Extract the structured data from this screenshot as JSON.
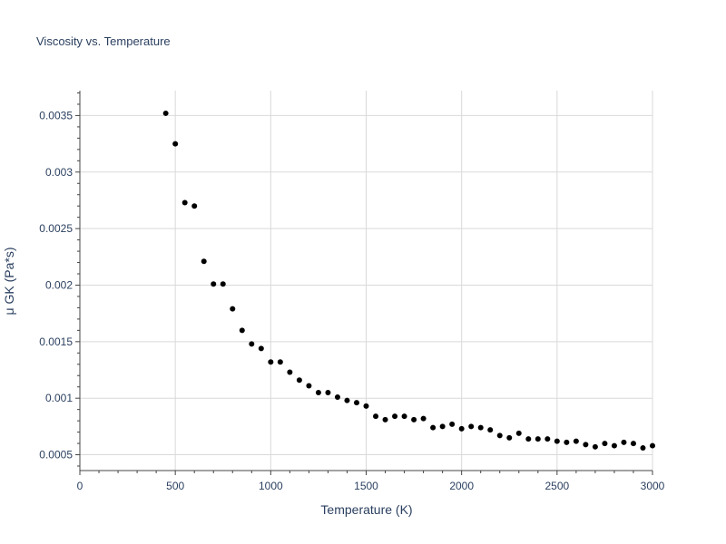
{
  "chart_data": {
    "type": "scatter",
    "title": "Viscosity vs. Temperature",
    "xlabel": "Temperature (K)",
    "ylabel": "μ GK (Pa*s)",
    "xlim": [
      0,
      3000
    ],
    "ylim": [
      0.00036,
      0.00372
    ],
    "grid": true,
    "legend": "none",
    "marker_color": "#000000",
    "x_ticks": [
      0,
      500,
      1000,
      1500,
      2000,
      2500,
      3000
    ],
    "x_tick_labels": [
      "0",
      "500",
      "1000",
      "1500",
      "2000",
      "2500",
      "3000"
    ],
    "y_ticks": [
      0.0005,
      0.001,
      0.0015,
      0.002,
      0.0025,
      0.003,
      0.0035
    ],
    "y_tick_labels": [
      "0.0005",
      "0.001",
      "0.0015",
      "0.002",
      "0.0025",
      "0.003",
      "0.0035"
    ],
    "series": [
      {
        "x": [
          450,
          500,
          550,
          600,
          650,
          700,
          750,
          800,
          850,
          900,
          950,
          1000,
          1050,
          1100,
          1150,
          1200,
          1250,
          1300,
          1350,
          1400,
          1450,
          1500,
          1550,
          1600,
          1650,
          1700,
          1750,
          1800,
          1850,
          1900,
          1950,
          2000,
          2050,
          2100,
          2150,
          2200,
          2250,
          2300,
          2350,
          2400,
          2450,
          2500,
          2550,
          2600,
          2650,
          2700,
          2750,
          2800,
          2850,
          2900,
          2950,
          3000
        ],
        "y": [
          0.00352,
          0.00325,
          0.00273,
          0.0027,
          0.00221,
          0.00201,
          0.00201,
          0.00179,
          0.0016,
          0.00148,
          0.00144,
          0.00132,
          0.00132,
          0.00123,
          0.00116,
          0.00111,
          0.00105,
          0.00105,
          0.00101,
          0.00098,
          0.00096,
          0.00093,
          0.00084,
          0.00081,
          0.00084,
          0.00084,
          0.00081,
          0.00082,
          0.00074,
          0.00075,
          0.00077,
          0.00073,
          0.00075,
          0.00074,
          0.00072,
          0.00067,
          0.00065,
          0.00069,
          0.00064,
          0.00064,
          0.00064,
          0.00062,
          0.00061,
          0.00062,
          0.00059,
          0.00057,
          0.0006,
          0.00058,
          0.00061,
          0.0006,
          0.00056,
          0.00058
        ]
      }
    ]
  }
}
